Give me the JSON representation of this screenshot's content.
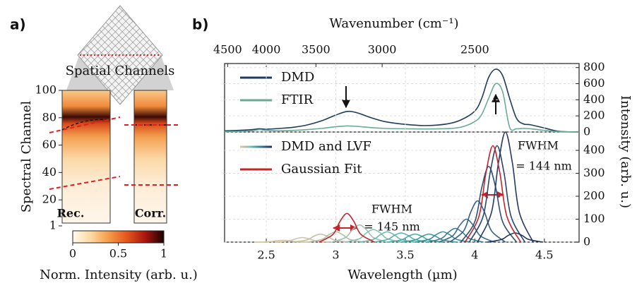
{
  "chart_data": [
    {
      "type": "heatmap",
      "panel_label": "a)",
      "top_label": "Spatial Channels",
      "ylabel": "Spectral Channel",
      "ylim": [
        1,
        100
      ],
      "yticks": [
        1,
        20,
        40,
        60,
        80,
        100
      ],
      "labels": [
        "Rec.",
        "Corr."
      ],
      "label_colors": [
        "#6b6b6b",
        "#2a5580"
      ],
      "colorbar": {
        "label": "Norm. Intensity (arb. u.)",
        "lim": [
          0,
          1
        ],
        "ticks": [
          0,
          0.5,
          1
        ],
        "colormap": [
          "#fffaf0",
          "#fcd9a0",
          "#f59a45",
          "#e2551b",
          "#a8150e",
          "#1a0000"
        ]
      }
    },
    {
      "type": "line",
      "panel_label": "b)",
      "top_xlabel": "Wavenumber (cm⁻¹)",
      "top_xticks": [
        4500,
        4000,
        3500,
        3000,
        2500
      ],
      "ylim": [
        0,
        850
      ],
      "yticks": [
        0,
        200,
        400,
        600,
        800
      ],
      "grid": true,
      "series": [
        {
          "name": "DMD",
          "color": "#1f3b5c",
          "x": [
            2.2,
            2.3,
            2.4,
            2.45,
            2.5,
            2.6,
            2.7,
            2.8,
            2.9,
            3.0,
            3.08,
            3.15,
            3.25,
            3.35,
            3.5,
            3.65,
            3.8,
            3.9,
            4.0,
            4.05,
            4.1,
            4.15,
            4.2,
            4.25,
            4.3,
            4.35,
            4.4,
            4.5,
            4.6,
            4.75
          ],
          "values": [
            15,
            20,
            30,
            40,
            35,
            45,
            60,
            90,
            140,
            210,
            255,
            240,
            180,
            130,
            95,
            80,
            100,
            150,
            260,
            420,
            680,
            780,
            700,
            420,
            170,
            100,
            90,
            50,
            10,
            0
          ]
        },
        {
          "name": "FTIR",
          "color": "#6aaa96",
          "x": [
            2.2,
            2.3,
            2.4,
            2.45,
            2.5,
            2.6,
            2.7,
            2.8,
            2.9,
            3.0,
            3.08,
            3.15,
            3.25,
            3.35,
            3.5,
            3.65,
            3.8,
            3.9,
            4.0,
            4.05,
            4.1,
            4.15,
            4.2,
            4.25,
            4.3,
            4.35,
            4.4,
            4.5,
            4.6,
            4.75
          ],
          "values": [
            5,
            8,
            15,
            30,
            20,
            15,
            20,
            30,
            45,
            65,
            75,
            70,
            55,
            45,
            40,
            38,
            42,
            60,
            130,
            220,
            420,
            600,
            500,
            60,
            40,
            45,
            40,
            20,
            5,
            0
          ]
        }
      ]
    },
    {
      "type": "line",
      "xlabel": "Wavelength (µm)",
      "ylabel": "Intensity (arb. u.)",
      "xlim": [
        2.2,
        4.75
      ],
      "xticks": [
        2.5,
        3,
        3.5,
        4,
        4.5
      ],
      "ylim": [
        0,
        480
      ],
      "yticks": [
        0,
        100,
        200,
        300,
        400
      ],
      "grid": true,
      "annotations": [
        "FWHM",
        "= 145 nm",
        "FWHM",
        "= 144 nm"
      ],
      "series": [
        {
          "name": "DMD and LVF",
          "colors": [
            "#d8c8aa",
            "#d0c3a8",
            "#c5bea4",
            "#b8bca0",
            "#9cc3b0",
            "#82c0b2",
            "#6cbab0",
            "#58b2ab",
            "#4aa7a5",
            "#3f9aa0",
            "#3a8c9a",
            "#387d94",
            "#366e8c",
            "#335e80",
            "#2f5076",
            "#2a446b",
            "#253b62",
            "#1f3358"
          ],
          "curves": [
            {
              "x": [
                2.42,
                2.52,
                2.57,
                2.62,
                2.67,
                2.72,
                2.82
              ],
              "values": [
                0,
                2,
                6,
                8,
                6,
                2,
                0
              ]
            },
            {
              "x": [
                2.56,
                2.66,
                2.71,
                2.76,
                2.81,
                2.86,
                2.96
              ],
              "values": [
                0,
                5,
                14,
                20,
                14,
                5,
                0
              ]
            },
            {
              "x": [
                2.69,
                2.79,
                2.84,
                2.89,
                2.94,
                2.99,
                3.09
              ],
              "values": [
                0,
                9,
                25,
                35,
                25,
                9,
                0
              ]
            },
            {
              "x": [
                2.8,
                2.9,
                2.95,
                3.0,
                3.05,
                3.1,
                3.2
              ],
              "values": [
                0,
                12,
                32,
                45,
                32,
                12,
                0
              ]
            },
            {
              "x": [
                2.97,
                3.07,
                3.12,
                3.17,
                3.22,
                3.27,
                3.37
              ],
              "values": [
                0,
                20,
                54,
                75,
                54,
                20,
                0
              ]
            },
            {
              "x": [
                3.07,
                3.17,
                3.22,
                3.27,
                3.32,
                3.37,
                3.47
              ],
              "values": [
                0,
                15,
                40,
                55,
                40,
                15,
                0
              ]
            },
            {
              "x": [
                3.17,
                3.27,
                3.32,
                3.37,
                3.42,
                3.47,
                3.57
              ],
              "values": [
                0,
                12,
                32,
                45,
                32,
                12,
                0
              ]
            },
            {
              "x": [
                3.27,
                3.37,
                3.42,
                3.47,
                3.52,
                3.57,
                3.67
              ],
              "values": [
                0,
                11,
                29,
                40,
                29,
                11,
                0
              ]
            },
            {
              "x": [
                3.37,
                3.47,
                3.52,
                3.57,
                3.62,
                3.67,
                3.77
              ],
              "values": [
                0,
                9,
                25,
                35,
                25,
                9,
                0
              ]
            },
            {
              "x": [
                3.47,
                3.57,
                3.62,
                3.67,
                3.72,
                3.77,
                3.87
              ],
              "values": [
                0,
                9,
                25,
                35,
                25,
                9,
                0
              ]
            },
            {
              "x": [
                3.57,
                3.67,
                3.72,
                3.77,
                3.82,
                3.87,
                3.97
              ],
              "values": [
                0,
                12,
                32,
                45,
                32,
                12,
                0
              ]
            },
            {
              "x": [
                3.66,
                3.76,
                3.81,
                3.86,
                3.91,
                3.96,
                4.06
              ],
              "values": [
                0,
                16,
                43,
                60,
                43,
                16,
                0
              ]
            },
            {
              "x": [
                3.74,
                3.84,
                3.89,
                3.94,
                3.99,
                4.04,
                4.14
              ],
              "values": [
                0,
                27,
                72,
                100,
                72,
                27,
                0
              ]
            },
            {
              "x": [
                3.82,
                3.92,
                3.97,
                4.02,
                4.07,
                4.12,
                4.22
              ],
              "values": [
                0,
                49,
                130,
                180,
                130,
                49,
                0
              ]
            },
            {
              "x": [
                3.9,
                4.0,
                4.05,
                4.1,
                4.15,
                4.2,
                4.3
              ],
              "values": [
                0,
                89,
                238,
                330,
                238,
                89,
                0
              ]
            },
            {
              "x": [
                3.96,
                4.06,
                4.11,
                4.16,
                4.21,
                4.26,
                4.36
              ],
              "values": [
                0,
                113,
                302,
                420,
                302,
                113,
                0
              ]
            },
            {
              "x": [
                4.02,
                4.12,
                4.17,
                4.22,
                4.27,
                4.32,
                4.42
              ],
              "values": [
                0,
                130,
                346,
                480,
                346,
                130,
                0
              ]
            },
            {
              "x": [
                4.09,
                4.19,
                4.24,
                4.29,
                4.34,
                4.39,
                4.49
              ],
              "values": [
                0,
                11,
                29,
                40,
                29,
                11,
                0
              ]
            }
          ]
        },
        {
          "name": "Gaussian Fit",
          "color": "#c0272d",
          "curves": [
            {
              "x": [
                2.88,
                2.98,
                3.03,
                3.08,
                3.13,
                3.18,
                3.28
              ],
              "values": [
                0,
                34,
                90,
                125,
                90,
                34,
                0
              ]
            },
            {
              "x": [
                3.93,
                4.03,
                4.08,
                4.13,
                4.18,
                4.23,
                4.33
              ],
              "values": [
                0,
                113,
                302,
                420,
                302,
                113,
                0
              ]
            }
          ]
        }
      ]
    }
  ]
}
